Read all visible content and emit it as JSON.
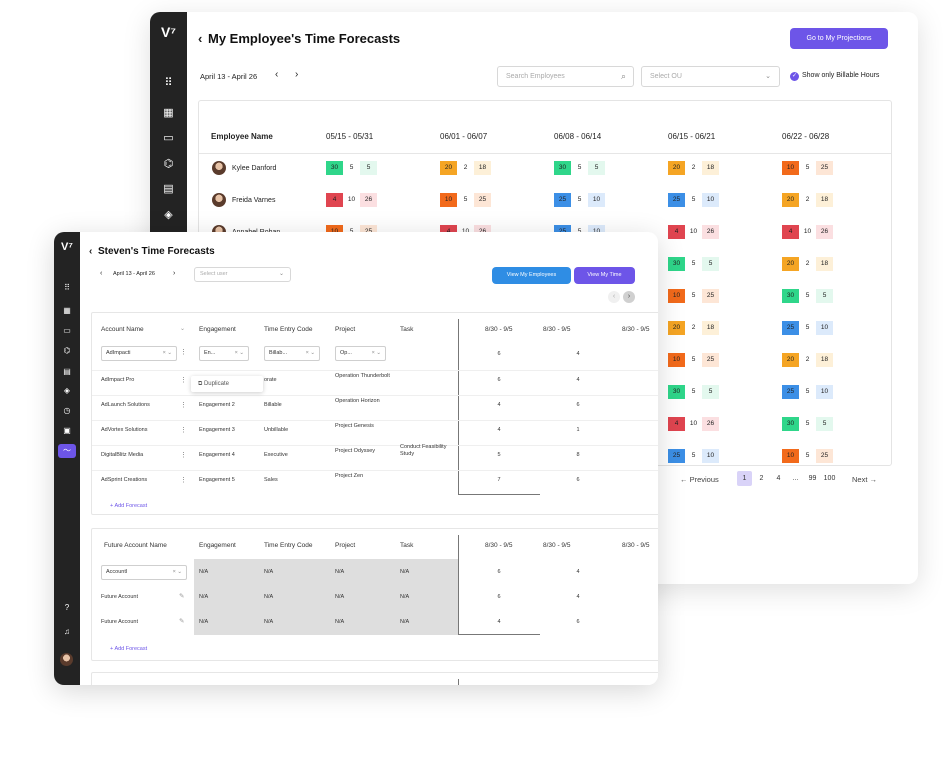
{
  "back": {
    "title": "My Employee's Time Forecasts",
    "projections_button": "Go to My Projections",
    "date_range": "April 13 - April 26",
    "search_placeholder": "Search Employees",
    "ou_placeholder": "Select OU",
    "billable_label": "Show only Billable Hours",
    "col_employee": "Employee Name",
    "weeks": [
      "05/15 - 05/31",
      "06/01 - 06/07",
      "06/08 - 06/14",
      "06/15 - 06/21",
      "06/22 - 06/28"
    ],
    "employees": [
      "Kylee Danford",
      "Freida Varnes",
      "Annabel Rohan"
    ],
    "rows": [
      [
        [
          [
            "30",
            "5",
            "5"
          ],
          "g"
        ],
        [
          [
            "20",
            "2",
            "18"
          ],
          "o"
        ],
        [
          [
            "30",
            "5",
            "5"
          ],
          "g"
        ],
        [
          [
            "20",
            "2",
            "18"
          ],
          "o"
        ],
        [
          [
            "10",
            "5",
            "25"
          ],
          "r2"
        ]
      ],
      [
        [
          [
            "4",
            "10",
            "26"
          ],
          "r"
        ],
        [
          [
            "10",
            "5",
            "25"
          ],
          "r2"
        ],
        [
          [
            "25",
            "5",
            "10"
          ],
          "b"
        ],
        [
          [
            "25",
            "5",
            "10"
          ],
          "b"
        ],
        [
          [
            "20",
            "2",
            "18"
          ],
          "o"
        ]
      ],
      [
        [
          [
            "10",
            "5",
            "25"
          ],
          "r2"
        ],
        [
          [
            "4",
            "10",
            "26"
          ],
          "r"
        ],
        [
          [
            "25",
            "5",
            "10"
          ],
          "b"
        ],
        [
          [
            "4",
            "10",
            "26"
          ],
          "r"
        ],
        [
          [
            "4",
            "10",
            "26"
          ],
          "r"
        ]
      ],
      [
        null,
        null,
        null,
        [
          [
            "30",
            "5",
            "5"
          ],
          "g"
        ],
        [
          [
            "20",
            "2",
            "18"
          ],
          "o"
        ]
      ],
      [
        null,
        null,
        null,
        [
          [
            "10",
            "5",
            "25"
          ],
          "r2"
        ],
        [
          [
            "30",
            "5",
            "5"
          ],
          "g"
        ]
      ],
      [
        null,
        null,
        null,
        [
          [
            "20",
            "2",
            "18"
          ],
          "o"
        ],
        [
          [
            "25",
            "5",
            "10"
          ],
          "b"
        ]
      ],
      [
        null,
        null,
        null,
        [
          [
            "10",
            "5",
            "25"
          ],
          "r2"
        ],
        [
          [
            "20",
            "2",
            "18"
          ],
          "o"
        ]
      ],
      [
        null,
        null,
        null,
        [
          [
            "30",
            "5",
            "5"
          ],
          "g"
        ],
        [
          [
            "25",
            "5",
            "10"
          ],
          "b"
        ]
      ],
      [
        null,
        null,
        null,
        [
          [
            "4",
            "10",
            "26"
          ],
          "r"
        ],
        [
          [
            "30",
            "5",
            "5"
          ],
          "g"
        ]
      ],
      [
        null,
        null,
        null,
        [
          [
            "25",
            "5",
            "10"
          ],
          "b"
        ],
        [
          [
            "10",
            "5",
            "25"
          ],
          "r2"
        ]
      ]
    ],
    "pagination": {
      "previous": "Previous",
      "next": "Next",
      "pages": [
        "1",
        "2",
        "4",
        "...",
        "99",
        "100"
      ]
    }
  },
  "front": {
    "title": "Steven's Time Forecasts",
    "date_range": "April 13 - April 26",
    "select_user": "Select user",
    "view_employees": "View My Employees",
    "view_time": "View My Time",
    "cols": [
      "Account Name",
      "Engagement",
      "Time Entry Code",
      "Project",
      "Task"
    ],
    "weeks": [
      "8/30 - 9/5",
      "8/30 - 9/5",
      "8/30 - 9/5"
    ],
    "filters": [
      "AdImpacti",
      "En...",
      "Billab...",
      "Op..."
    ],
    "duplicate": "Duplicate",
    "accounts": [
      {
        "name": "AdImpact Pro",
        "eng": "",
        "code": "orate",
        "project": "Operation Thunderbolt",
        "task": "",
        "w1": "6",
        "w2": "4"
      },
      {
        "name": "AdLaunch Solutions",
        "eng": "Engagement 2",
        "code": "Billable",
        "project": "Operation Horizon",
        "task": "",
        "w1": "4",
        "w2": "6"
      },
      {
        "name": "AdVortex Solutions",
        "eng": "Engagement 3",
        "code": "Unbillable",
        "project": "Project Genesis",
        "task": "",
        "w1": "4",
        "w2": "1"
      },
      {
        "name": "DigitalBlitz Media",
        "eng": "Engagement 4",
        "code": "Executive",
        "project": "Project Odyssey",
        "task": "Conduct Feasibility Study",
        "w1": "5",
        "w2": "8"
      },
      {
        "name": "AdSprint Creations",
        "eng": "Engagement 5",
        "code": "Sales",
        "project": "Project Zen",
        "task": "",
        "w1": "7",
        "w2": "6"
      }
    ],
    "first_row": {
      "w1": "6",
      "w2": "4"
    },
    "add_forecast": "Add Forecast",
    "future_cols": [
      "Future Account Name",
      "Engagement",
      "Time Entry Code",
      "Project",
      "Task"
    ],
    "future_filter": "AccountI",
    "na": "N/A",
    "future_rows": [
      {
        "name": "",
        "w1": "6",
        "w2": "4"
      },
      {
        "name": "Future Account",
        "w1": "6",
        "w2": "4"
      },
      {
        "name": "Future Account",
        "w1": "4",
        "w2": "6"
      }
    ]
  },
  "colors": {
    "g": [
      "#2fd68a",
      "#e3f8ee"
    ],
    "o": [
      "#f5a524",
      "#fdf0d8"
    ],
    "r": [
      "#e04550",
      "#fbdfe1"
    ],
    "r2": [
      "#f26a1b",
      "#fde6d6"
    ],
    "b": [
      "#3c8fe6",
      "#dceafb"
    ]
  }
}
